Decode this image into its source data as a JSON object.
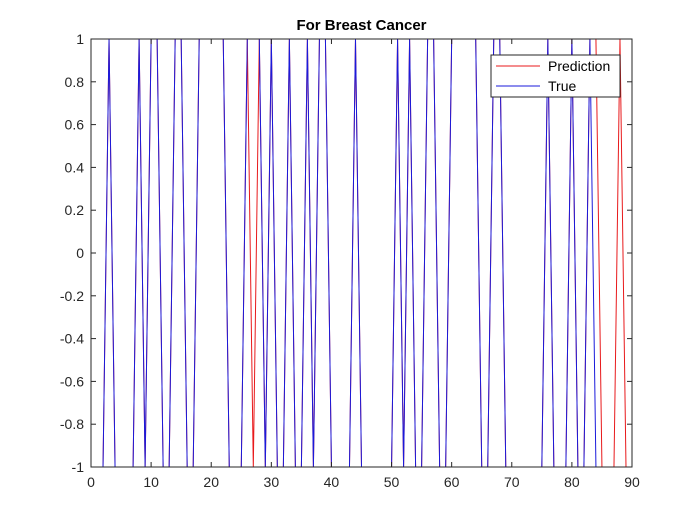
{
  "chart_data": {
    "type": "line",
    "title": "For Breast Cancer",
    "xlabel": "",
    "ylabel": "",
    "xlim": [
      0,
      90
    ],
    "ylim": [
      -1,
      1
    ],
    "x_ticks": [
      0,
      10,
      20,
      30,
      40,
      50,
      60,
      70,
      80,
      90
    ],
    "y_ticks": [
      -1,
      -0.8,
      -0.6,
      -0.4,
      -0.2,
      0,
      0.2,
      0.4,
      0.6,
      0.8,
      1
    ],
    "x_tick_labels": [
      "0",
      "10",
      "20",
      "30",
      "40",
      "50",
      "60",
      "70",
      "80",
      "90"
    ],
    "y_tick_labels": [
      "-1",
      "-0.8",
      "-0.6",
      "-0.4",
      "-0.2",
      "0",
      "0.2",
      "0.4",
      "0.6",
      "0.8",
      "1"
    ],
    "grid": false,
    "legend_position": "top-right",
    "x": [
      1,
      2,
      3,
      4,
      5,
      6,
      7,
      8,
      9,
      10,
      11,
      12,
      13,
      14,
      15,
      16,
      17,
      18,
      19,
      20,
      21,
      22,
      23,
      24,
      25,
      26,
      27,
      28,
      29,
      30,
      31,
      32,
      33,
      34,
      35,
      36,
      37,
      38,
      39,
      40,
      41,
      42,
      43,
      44,
      45,
      46,
      47,
      48,
      49,
      50,
      51,
      52,
      53,
      54,
      55,
      56,
      57,
      58,
      59,
      60,
      61,
      62,
      63,
      64,
      65,
      66,
      67,
      68,
      69,
      70,
      71,
      72,
      73,
      74,
      75,
      76,
      77,
      78,
      79,
      80,
      81,
      82,
      83,
      84,
      85,
      86,
      87,
      88,
      89
    ],
    "series": [
      {
        "name": "Prediction",
        "color": "#e8191b",
        "values": [
          -1,
          -1,
          1,
          -1,
          -1,
          -1,
          -1,
          1,
          -1,
          1,
          1,
          -1,
          -1,
          1,
          1,
          -1,
          -1,
          1,
          1,
          1,
          1,
          1,
          -1,
          -1,
          -1,
          1,
          -1,
          1,
          -1,
          1,
          -1,
          -1,
          1,
          -1,
          -1,
          1,
          -1,
          1,
          1,
          -1,
          -1,
          -1,
          -1,
          1,
          -1,
          -1,
          -1,
          -1,
          -1,
          -1,
          1,
          -1,
          1,
          -1,
          -1,
          1,
          1,
          -1,
          -1,
          1,
          1,
          1,
          1,
          1,
          -1,
          -1,
          1,
          1,
          -1,
          -1,
          -1,
          -1,
          -1,
          -1,
          -1,
          1,
          -1,
          -1,
          -1,
          1,
          -1,
          -1,
          1,
          1,
          -1,
          -1,
          -1,
          1,
          -1
        ]
      },
      {
        "name": "True",
        "color": "#1a1adb",
        "values": [
          -1,
          -1,
          1,
          -1,
          -1,
          -1,
          -1,
          1,
          -1,
          1,
          1,
          -1,
          -1,
          1,
          1,
          -1,
          -1,
          1,
          1,
          1,
          1,
          1,
          -1,
          -1,
          -1,
          1,
          1,
          1,
          -1,
          1,
          -1,
          -1,
          1,
          -1,
          -1,
          1,
          -1,
          1,
          1,
          -1,
          -1,
          -1,
          -1,
          1,
          -1,
          -1,
          -1,
          -1,
          -1,
          -1,
          1,
          -1,
          1,
          -1,
          -1,
          1,
          1,
          -1,
          -1,
          1,
          1,
          1,
          1,
          1,
          -1,
          -1,
          1,
          1,
          -1,
          -1,
          -1,
          -1,
          -1,
          -1,
          -1,
          1,
          -1,
          -1,
          -1,
          1,
          -1,
          -1,
          1,
          -1,
          -1,
          -1,
          -1,
          -1,
          -1
        ]
      }
    ]
  }
}
